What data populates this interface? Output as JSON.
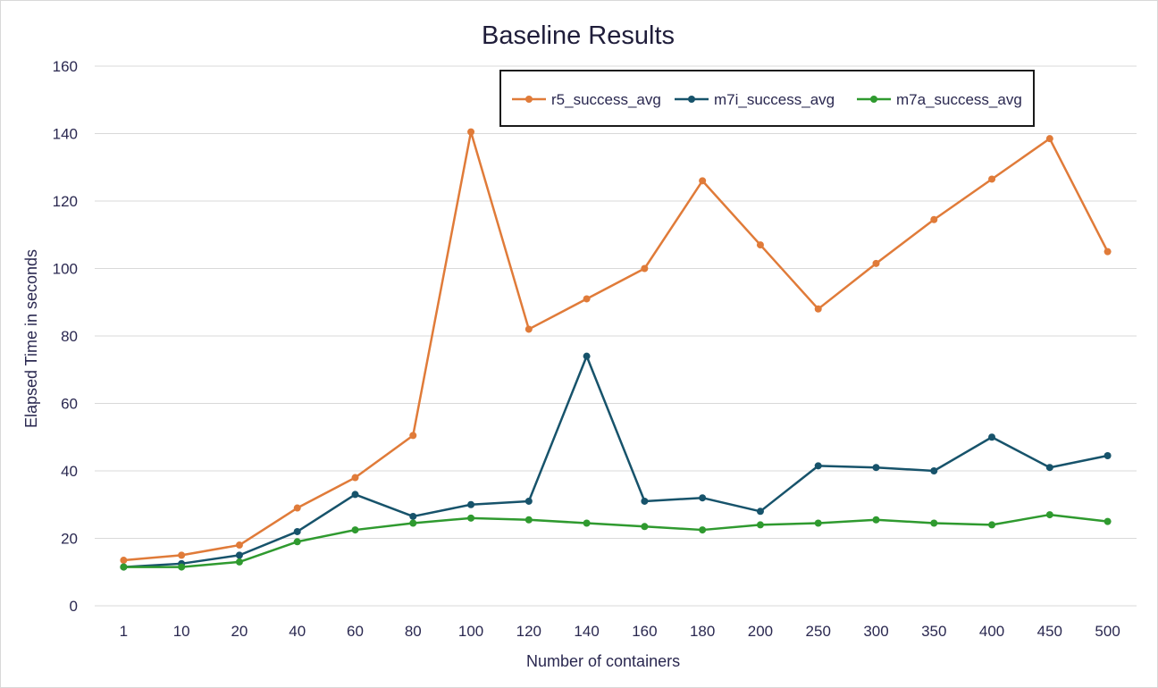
{
  "chart_data": {
    "type": "line",
    "title": "Baseline Results",
    "xlabel": "Number of containers",
    "ylabel": "Elapsed Time in seconds",
    "ylim": [
      0,
      160
    ],
    "yticks": [
      0,
      20,
      40,
      60,
      80,
      100,
      120,
      140,
      160
    ],
    "grid": true,
    "legend_position": "top-right",
    "categories": [
      "1",
      "10",
      "20",
      "40",
      "60",
      "80",
      "100",
      "120",
      "140",
      "160",
      "180",
      "200",
      "250",
      "300",
      "350",
      "400",
      "450",
      "500"
    ],
    "series": [
      {
        "name": "r5_success_avg",
        "color": "#e07b39",
        "values": [
          13.5,
          15,
          18,
          29,
          38,
          50.5,
          140.5,
          82,
          91,
          100,
          126,
          107,
          88,
          101.5,
          114.5,
          126.5,
          138.5,
          105
        ]
      },
      {
        "name": "m7i_success_avg",
        "color": "#17536b",
        "values": [
          11.5,
          12.5,
          15,
          22,
          33,
          26.5,
          30,
          31,
          74,
          31,
          32,
          28,
          41.5,
          41,
          40,
          50,
          41,
          44.5
        ]
      },
      {
        "name": "m7a_success_avg",
        "color": "#2f9a2f",
        "values": [
          11.5,
          11.5,
          13,
          19,
          22.5,
          24.5,
          26,
          25.5,
          24.5,
          23.5,
          22.5,
          24,
          24.5,
          25.5,
          24.5,
          24,
          27,
          25
        ]
      }
    ]
  }
}
